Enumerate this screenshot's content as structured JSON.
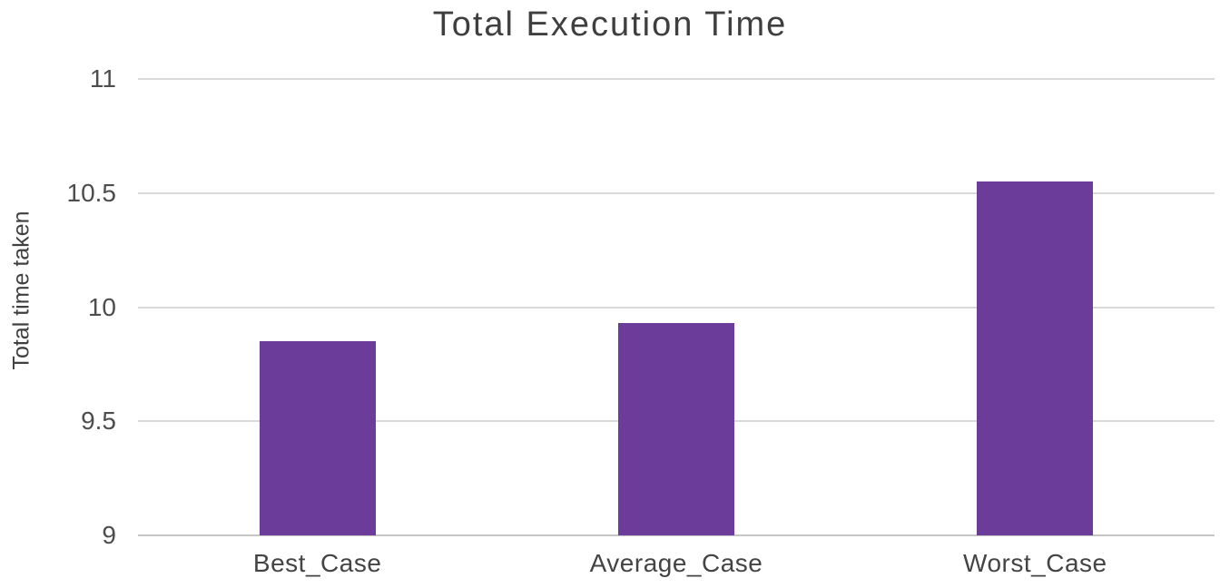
{
  "chart_data": {
    "type": "bar",
    "title": "Total Execution Time",
    "xlabel": "",
    "ylabel": "Total time taken",
    "categories": [
      "Best_Case",
      "Average_Case",
      "Worst_Case"
    ],
    "values": [
      9.85,
      9.93,
      10.55
    ],
    "ylim": [
      9,
      11
    ],
    "yticks": [
      9,
      9.5,
      10,
      10.5,
      11
    ],
    "grid": "horizontal",
    "legend_position": "none",
    "bar_color": "#6b3c9a",
    "gridline_color": "#d9d9d9",
    "axis_line_color": "#c6c6c6",
    "title_color": "#3f3f3f",
    "tick_label_color": "#4d4d4d"
  }
}
